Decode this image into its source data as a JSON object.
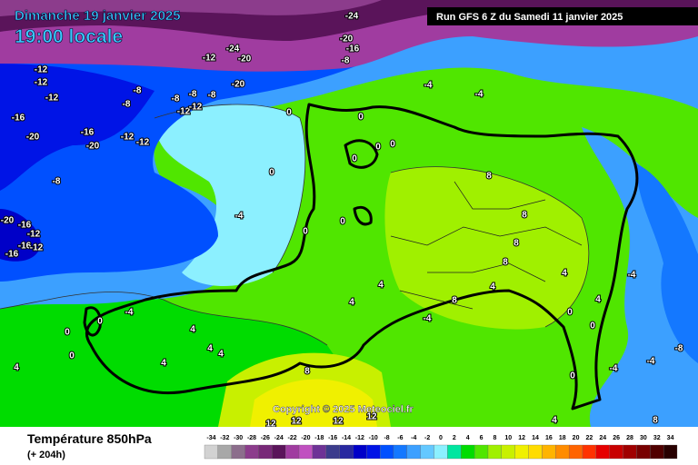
{
  "header": {
    "date": "Dimanche 19 janvier 2025",
    "time": "19:00 locale",
    "run": "Run GFS 6 Z du Samedi 11 janvier 2025"
  },
  "map": {
    "labels": [
      -12,
      -12,
      -12,
      -8,
      -8,
      -8,
      -8,
      -8,
      -12,
      -12,
      -16,
      -16,
      -20,
      -20,
      -12,
      -12,
      -8,
      -20,
      -16,
      -12,
      -16,
      -12,
      -16,
      -12,
      -24,
      -20,
      -20,
      -20,
      -16,
      -8,
      -24,
      -4,
      -4,
      0,
      0,
      0,
      0,
      0,
      0,
      -4,
      0,
      0,
      8,
      8,
      8,
      8,
      4,
      8,
      4,
      -4,
      -4,
      4,
      4,
      0,
      -4,
      0,
      0,
      4,
      4,
      4,
      4,
      4,
      4,
      0,
      0,
      0,
      -4,
      -4,
      -8,
      8,
      12,
      12,
      12,
      12,
      4,
      8
    ]
  },
  "copyright": "Copyright © 2025 Meteociel.fr",
  "legend": {
    "title": "Température 850hPa",
    "subtitle": "(+ 204h)",
    "scale": [
      {
        "value": -34,
        "color": "#d2d2d2"
      },
      {
        "value": -32,
        "color": "#a8a8a8"
      },
      {
        "value": -30,
        "color": "#8c6e8c"
      },
      {
        "value": -28,
        "color": "#8c3c8c"
      },
      {
        "value": -26,
        "color": "#782878"
      },
      {
        "value": -24,
        "color": "#5a145a"
      },
      {
        "value": -22,
        "color": "#a03ca0"
      },
      {
        "value": -20,
        "color": "#c050c0"
      },
      {
        "value": -18,
        "color": "#6e3296"
      },
      {
        "value": -16,
        "color": "#3c3c8c"
      },
      {
        "value": -14,
        "color": "#2828a0"
      },
      {
        "value": -12,
        "color": "#0000c8"
      },
      {
        "value": -10,
        "color": "#0014e6"
      },
      {
        "value": -8,
        "color": "#0050ff"
      },
      {
        "value": -6,
        "color": "#1478ff"
      },
      {
        "value": -4,
        "color": "#3ca0ff"
      },
      {
        "value": -2,
        "color": "#64c8ff"
      },
      {
        "value": 0,
        "color": "#8cf0ff"
      },
      {
        "value": 2,
        "color": "#00e6a0"
      },
      {
        "value": 4,
        "color": "#00dc00"
      },
      {
        "value": 6,
        "color": "#50e600"
      },
      {
        "value": 8,
        "color": "#a0f000"
      },
      {
        "value": 10,
        "color": "#c8f000"
      },
      {
        "value": 12,
        "color": "#f0f000"
      },
      {
        "value": 14,
        "color": "#ffdc00"
      },
      {
        "value": 16,
        "color": "#ffb400"
      },
      {
        "value": 18,
        "color": "#ff8c00"
      },
      {
        "value": 20,
        "color": "#ff6400"
      },
      {
        "value": 22,
        "color": "#ff3200"
      },
      {
        "value": 24,
        "color": "#e60000"
      },
      {
        "value": 26,
        "color": "#c80000"
      },
      {
        "value": 28,
        "color": "#a00000"
      },
      {
        "value": 30,
        "color": "#780000"
      },
      {
        "value": 32,
        "color": "#500000"
      },
      {
        "value": 34,
        "color": "#280000"
      }
    ]
  }
}
